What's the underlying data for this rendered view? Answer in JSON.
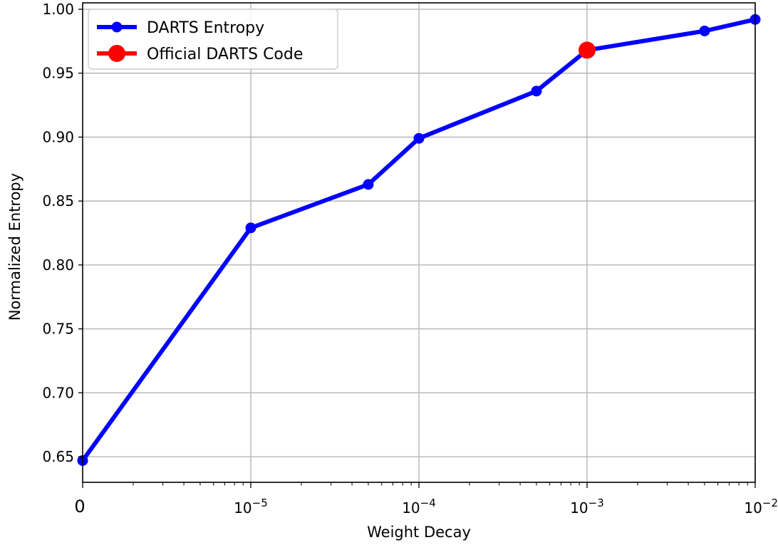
{
  "chart_data": {
    "type": "line",
    "title": "",
    "xlabel": "Weight Decay",
    "ylabel": "Normalized Entropy",
    "x_scale": "log with zero at origin",
    "x_ticks": [
      {
        "value": 0,
        "base": "0",
        "exp": ""
      },
      {
        "value": 1e-05,
        "base": "10",
        "exp": "−5"
      },
      {
        "value": 0.0001,
        "base": "10",
        "exp": "−4"
      },
      {
        "value": 0.001,
        "base": "10",
        "exp": "−3"
      },
      {
        "value": 0.01,
        "base": "10",
        "exp": "−2"
      }
    ],
    "y_ticks": [
      "0.65",
      "0.70",
      "0.75",
      "0.80",
      "0.85",
      "0.90",
      "0.95",
      "1.00"
    ],
    "ylim": [
      0.63,
      1.005
    ],
    "grid": true,
    "legend_position": "top-left",
    "series": [
      {
        "name": "DARTS Entropy",
        "color": "#0000ff",
        "marker": "circle",
        "points": [
          {
            "x": 0,
            "y": 0.647
          },
          {
            "x": 1e-05,
            "y": 0.829
          },
          {
            "x": 5e-05,
            "y": 0.863
          },
          {
            "x": 0.0001,
            "y": 0.899
          },
          {
            "x": 0.0005,
            "y": 0.936
          },
          {
            "x": 0.001,
            "y": 0.968
          },
          {
            "x": 0.005,
            "y": 0.983
          },
          {
            "x": 0.01,
            "y": 0.992
          }
        ]
      },
      {
        "name": " Official DARTS Code",
        "color": "#ff0000",
        "marker": "circle",
        "points": [
          {
            "x": 0.001,
            "y": 0.968
          }
        ]
      }
    ]
  }
}
